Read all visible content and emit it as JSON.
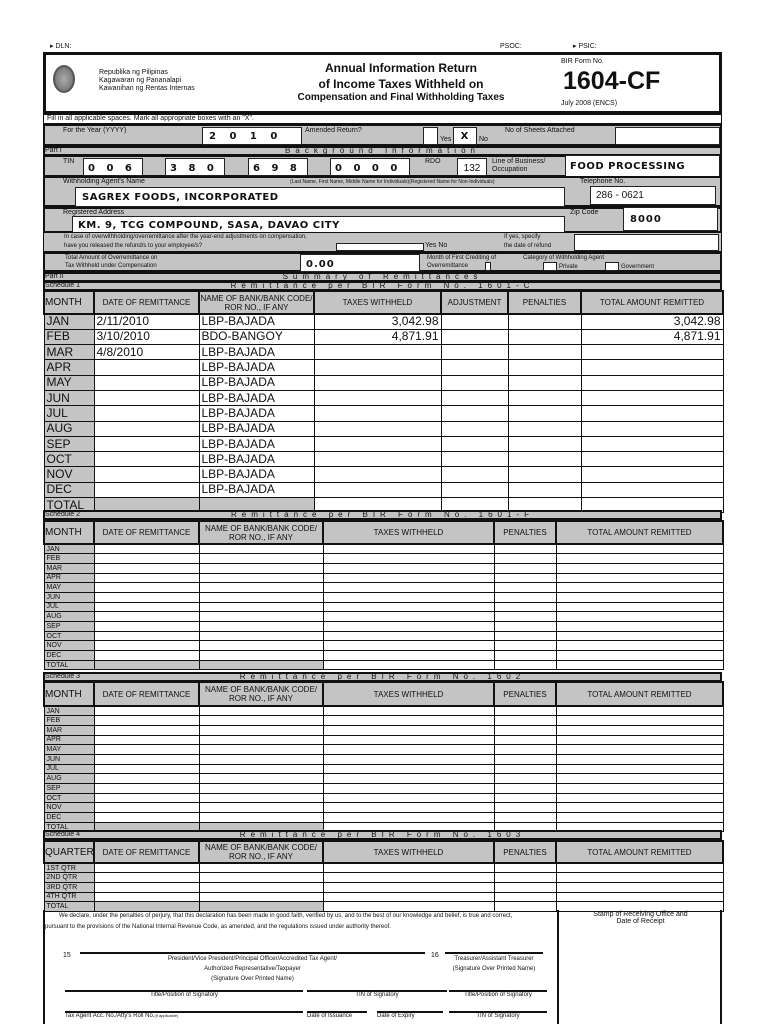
{
  "top": {
    "dln": "DLN:",
    "psoc": "PSOC:",
    "psic": "PSIC:"
  },
  "header": {
    "agency": [
      "Republika ng Pilipinas",
      "Kagawaran ng Pananalapi",
      "Kawanihan ng Rentas Internas"
    ],
    "title1": "Annual Information Return",
    "title2": "of Income Taxes  Withheld on",
    "title3": "Compensation and Final Withholding Taxes",
    "form_label": "BIR Form No.",
    "form_no": "1604-CF",
    "version": "July 2008 (ENCS)"
  },
  "instructions": "Fill in all applicable spaces. Mark all appropriate boxes with an \"X\".",
  "part1": {
    "year_label": "For the Year (YYYY)",
    "year": "2 0 1 0",
    "amended_label": "Amended Return?",
    "yes": "Yes",
    "no": "No",
    "amended_mark": "X",
    "sheets_label": "No of Sheets Attached",
    "part_label": "Part I",
    "part_title": "Background Information",
    "tin_label": "TIN",
    "tin": [
      "0 0 6",
      "3 8 0",
      "6 9 8",
      "0 0 0 0"
    ],
    "rdo_label": "RDO",
    "rdo": "132",
    "line_label": "Line of Business/ Occupation",
    "line": "FOOD PROCESSING",
    "agent_label": "Withholding Agent's Name",
    "agent_hint": "(Last Name, First Name, Middle Name for Individuals)(Registered Name for Non-Individuals)",
    "agent": "SAGREX FOODS, INCORPORATED",
    "tel_label": "Telephone No.",
    "tel": "286 - 0621",
    "addr_label": "Registered Address",
    "addr": "KM. 9, TCG COMPOUND, SASA, DAVAO CITY",
    "zip_label": "Zip Code",
    "zip": "8000",
    "q11a": "In case of overwithholding/overremittance after the year-end adjustments on compensation,",
    "q11b": "have you released the refund/s to your employee/s?",
    "q11_specify": "If yes, specify",
    "q11_date": "the date of refund",
    "q12a": "Total Amount of Overremittance on",
    "q12b": "Tax Withheld under Compensation",
    "q12": "0.00",
    "q13a": "Month of First Crediting of",
    "q13b": "Overremittance",
    "q14": "Category of Withholding Agent",
    "private": "Private",
    "government": "Government"
  },
  "part2": {
    "label": "Part II",
    "title": "Summary of Remittances"
  },
  "schedules": [
    {
      "label": "Schedule 1",
      "title": "Remittance per BIR Form No. 1601-C",
      "headers": [
        "MONTH",
        "DATE OF REMITTANCE",
        "NAME OF BANK/BANK CODE/ ROR NO., IF ANY",
        "TAXES WITHHELD",
        "ADJUSTMENT",
        "PENALTIES",
        "TOTAL AMOUNT REMITTED"
      ],
      "rows": [
        [
          "JAN",
          "2/11/2010",
          "LBP-BAJADA",
          "3,042.98",
          "",
          "",
          "3,042.98"
        ],
        [
          "FEB",
          "3/10/2010",
          "BDO-BANGOY",
          "4,871.91",
          "",
          "",
          "4,871.91"
        ],
        [
          "MAR",
          "4/8/2010",
          "LBP-BAJADA",
          "",
          "",
          "",
          ""
        ],
        [
          "APR",
          "",
          "LBP-BAJADA",
          "",
          "",
          "",
          ""
        ],
        [
          "MAY",
          "",
          "LBP-BAJADA",
          "",
          "",
          "",
          ""
        ],
        [
          "JUN",
          "",
          "LBP-BAJADA",
          "",
          "",
          "",
          ""
        ],
        [
          "JUL",
          "",
          "LBP-BAJADA",
          "",
          "",
          "",
          ""
        ],
        [
          "AUG",
          "",
          "LBP-BAJADA",
          "",
          "",
          "",
          ""
        ],
        [
          "SEP",
          "",
          "LBP-BAJADA",
          "",
          "",
          "",
          ""
        ],
        [
          "OCT",
          "",
          "LBP-BAJADA",
          "",
          "",
          "",
          ""
        ],
        [
          "NOV",
          "",
          "LBP-BAJADA",
          "",
          "",
          "",
          ""
        ],
        [
          "DEC",
          "",
          "LBP-BAJADA",
          "",
          "",
          "",
          ""
        ],
        [
          "TOTAL",
          "",
          "",
          "",
          "",
          "",
          ""
        ]
      ]
    },
    {
      "label": "Schedule 2",
      "title": "Remittance per BIR Form No. 1601-F",
      "headers": [
        "MONTH",
        "DATE OF REMITTANCE",
        "NAME OF BANK/BANK CODE/ ROR NO., IF ANY",
        "TAXES WITHHELD",
        "PENALTIES",
        "TOTAL AMOUNT REMITTED"
      ],
      "rows": [
        [
          "JAN"
        ],
        [
          "FEB"
        ],
        [
          "MAR"
        ],
        [
          "APR"
        ],
        [
          "MAY"
        ],
        [
          "JUN"
        ],
        [
          "JUL"
        ],
        [
          "AUG"
        ],
        [
          "SEP"
        ],
        [
          "OCT"
        ],
        [
          "NOV"
        ],
        [
          "DEC"
        ],
        [
          "TOTAL"
        ]
      ]
    },
    {
      "label": "Schedule 3",
      "title": "Remittance per BIR Form No. 1602",
      "headers": [
        "MONTH",
        "DATE OF REMITTANCE",
        "NAME OF BANK/BANK CODE/ ROR NO., IF ANY",
        "TAXES WITHHELD",
        "PENALTIES",
        "TOTAL AMOUNT REMITTED"
      ],
      "rows": [
        [
          "JAN"
        ],
        [
          "FEB"
        ],
        [
          "MAR"
        ],
        [
          "APR"
        ],
        [
          "MAY"
        ],
        [
          "JUN"
        ],
        [
          "JUL"
        ],
        [
          "AUG"
        ],
        [
          "SEP"
        ],
        [
          "OCT"
        ],
        [
          "NOV"
        ],
        [
          "DEC"
        ],
        [
          "TOTAL"
        ]
      ]
    },
    {
      "label": "Schedule 4",
      "title": "Remittance per BIR Form No. 1603",
      "headers": [
        "QUARTER",
        "DATE OF REMITTANCE",
        "NAME OF BANK/BANK CODE/ ROR NO., IF ANY",
        "TAXES WITHHELD",
        "PENALTIES",
        "TOTAL AMOUNT REMITTED"
      ],
      "rows": [
        [
          "1ST QTR"
        ],
        [
          "2ND QTR"
        ],
        [
          "3RD QTR"
        ],
        [
          "4TH QTR"
        ],
        [
          "TOTAL"
        ]
      ]
    }
  ],
  "declaration": {
    "text": "We declare, under the penalties of perjury, that this declaration has been made in good faith, verified by us, and to the best of our knowledge and belief, is true and correct, pursuant to the provisions of the National Internal Revenue Code, as amended, and the regulations issued under authority thereof.",
    "stamp": "Stamp of Receiving Office and Date of Receipt",
    "n15": "15",
    "sig15a": "President/Vice President/Principal Officer/Accredited Tax Agent/",
    "sig15b": "Authorized Representative/Taxpayer",
    "sig15c": "(Signature Over Printed Name)",
    "n16": "16",
    "sig16a": "Treasurer/Assistant Treasurer",
    "sig16b": "(Signature Over Printed Name)",
    "title_pos": "Title/Position of Signatory",
    "tin_sig": "TIN of Signatory",
    "title_pos2": "Title/Position of Signatory",
    "agent_acc": "Tax Agent Acc. No./Atty's Roll No.",
    "if_applicable": "(if applicable)",
    "issuance": "Date of Issuance",
    "date_exp": "Date of Expiry",
    "tin_sig2": "TIN of Signatory"
  }
}
